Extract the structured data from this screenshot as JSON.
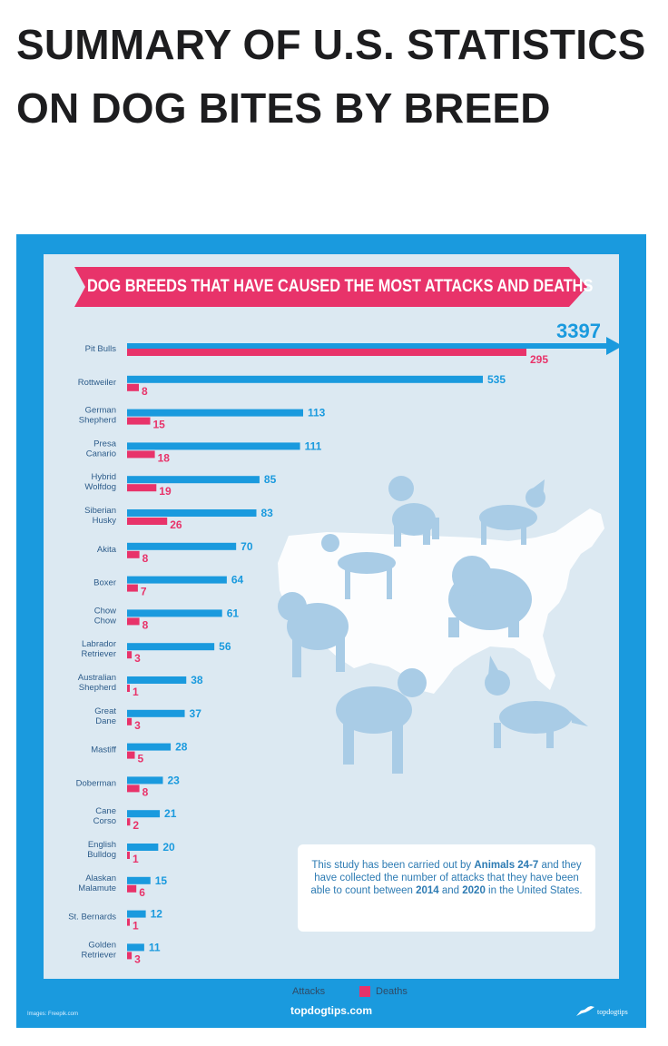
{
  "page": {
    "title": "SUMMARY OF U.S. STATISTICS ON DOG BITES BY BREED"
  },
  "banner": {
    "text": "DOG BREEDS THAT HAVE CAUSED THE MOST ATTACKS AND DEATHS"
  },
  "note": {
    "part1": "This study has been carried out by ",
    "bold1": "Animals 24-7",
    "part2": " and they have collected the number of attacks that they have been able to count between ",
    "bold2": "2014",
    "part3": " and ",
    "bold3": "2020",
    "part4": " in the United States."
  },
  "legend": {
    "attacks": "Attacks",
    "deaths": "Deaths"
  },
  "footer": {
    "credit": "Images: Freepik.com",
    "site": "topdogtips.com",
    "logo": "topdogtips"
  },
  "colors": {
    "attacks": "#1a9ade",
    "deaths": "#e8336a",
    "background": "#dce9f2",
    "frame": "#1a9ade",
    "silhouette": "#a9cce6",
    "map": "#ffffff"
  },
  "chart_data": {
    "type": "bar",
    "orientation": "horizontal",
    "title": "DOG BREEDS THAT HAVE CAUSED THE MOST ATTACKS AND DEATHS",
    "categories": [
      [
        "Pit Bulls"
      ],
      [
        "Rottweiler"
      ],
      [
        "German",
        "Shepherd"
      ],
      [
        "Presa",
        "Canario"
      ],
      [
        "Hybrid",
        "Wolfdog"
      ],
      [
        "Siberian",
        "Husky"
      ],
      [
        "Akita"
      ],
      [
        "Boxer"
      ],
      [
        "Chow",
        "Chow"
      ],
      [
        "Labrador",
        "Retriever"
      ],
      [
        "Australian",
        "Shepherd"
      ],
      [
        "Great",
        "Dane"
      ],
      [
        "Mastiff"
      ],
      [
        "Doberman"
      ],
      [
        "Cane",
        "Corso"
      ],
      [
        "English",
        "Bulldog"
      ],
      [
        "Alaskan",
        "Malamute"
      ],
      [
        "St. Bernards"
      ],
      [
        "Golden",
        "Retriever"
      ]
    ],
    "series": [
      {
        "name": "Attacks",
        "values": [
          3397,
          535,
          113,
          111,
          85,
          83,
          70,
          64,
          61,
          56,
          38,
          37,
          28,
          23,
          21,
          20,
          15,
          12,
          11
        ]
      },
      {
        "name": "Deaths",
        "values": [
          295,
          8,
          15,
          18,
          19,
          26,
          8,
          7,
          8,
          3,
          1,
          3,
          5,
          8,
          2,
          1,
          6,
          1,
          3
        ]
      }
    ],
    "xlabel": "",
    "ylabel": "",
    "grid": false,
    "legend": "bottom"
  }
}
